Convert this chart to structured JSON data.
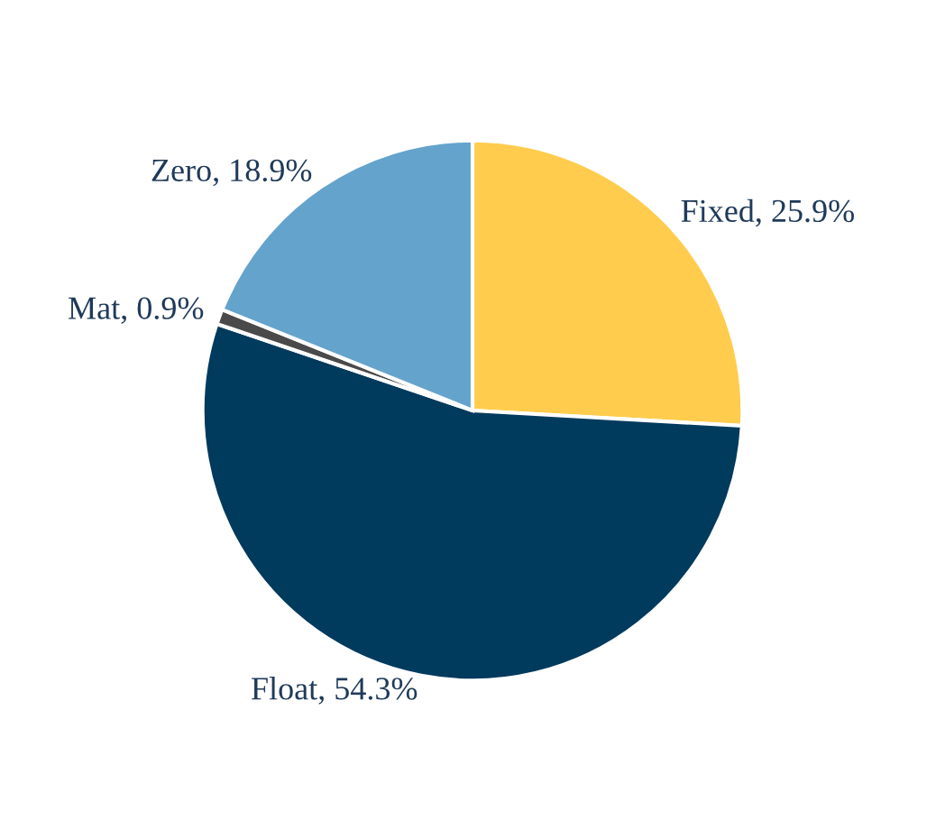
{
  "chart_data": {
    "type": "pie",
    "categories": [
      "Fixed",
      "Float",
      "Mat",
      "Zero"
    ],
    "values": [
      25.9,
      54.3,
      0.9,
      18.9
    ],
    "value_labels": [
      "25.9%",
      "54.3%",
      "0.9%",
      "18.9%"
    ],
    "colors": [
      "#ffcc4d",
      "#003a5d",
      "#4a4a4a",
      "#64a3cc"
    ],
    "legend": false
  }
}
